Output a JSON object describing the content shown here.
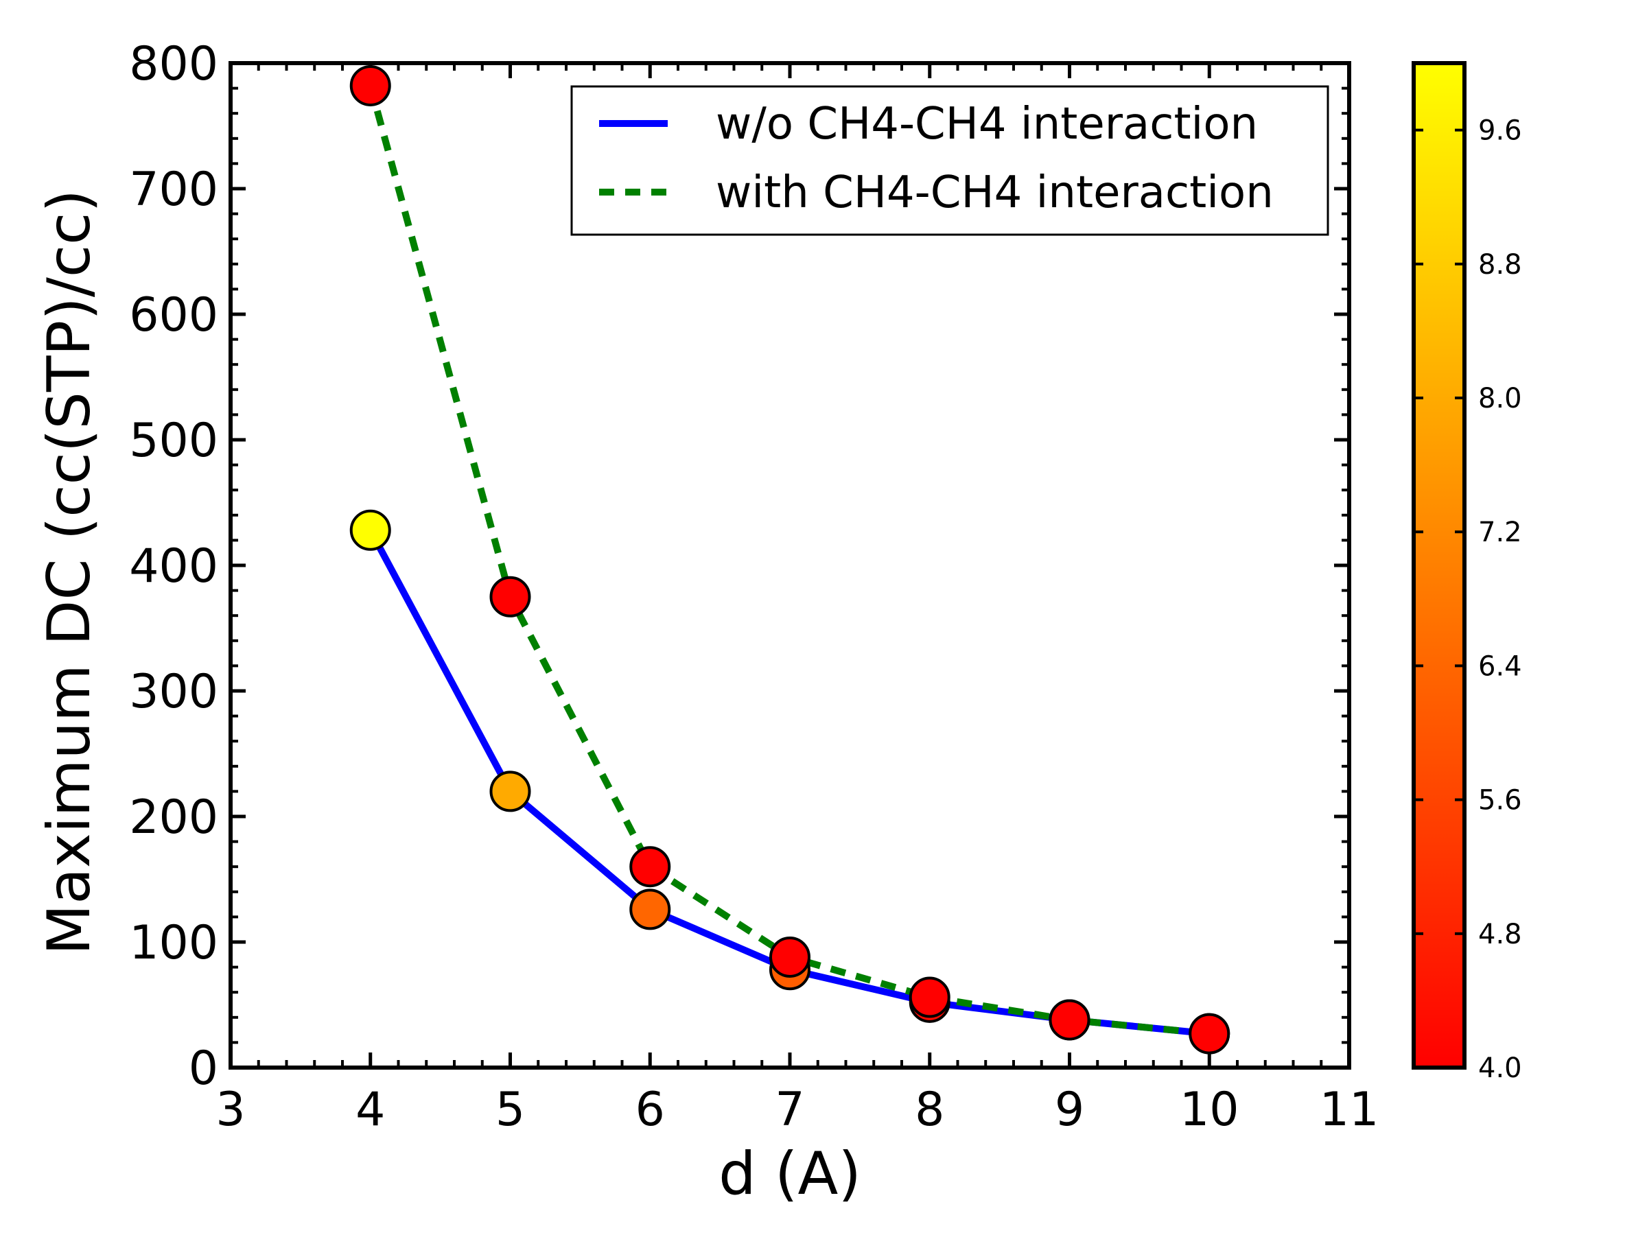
{
  "chart_data": {
    "type": "scatter",
    "xlabel": "d (A)",
    "ylabel": "Maximum DC (cc(STP)/cc)",
    "xlim": [
      3,
      11
    ],
    "ylim": [
      0,
      800
    ],
    "xticks": [
      "3",
      "4",
      "5",
      "6",
      "7",
      "8",
      "9",
      "10",
      "11"
    ],
    "yticks": [
      "0",
      "100",
      "200",
      "300",
      "400",
      "500",
      "600",
      "700",
      "800"
    ],
    "grid": false,
    "legend_position": "top-right",
    "series": [
      {
        "name": "w/o CH4-CH4 interaction",
        "style": "solid",
        "color": "#0000ff",
        "x": [
          4,
          5,
          6,
          7,
          8,
          9,
          10
        ],
        "y": [
          428,
          220,
          126,
          78,
          52,
          38,
          27
        ]
      },
      {
        "name": "with CH4-CH4 interaction",
        "style": "dashed",
        "color": "#008000",
        "x": [
          4,
          5,
          6,
          7,
          8,
          9,
          10
        ],
        "y": [
          782,
          375,
          160,
          88,
          56,
          38,
          27
        ]
      }
    ],
    "points": [
      {
        "x": 4,
        "y": 428,
        "c": 10.0
      },
      {
        "x": 5,
        "y": 220,
        "c": 8.0
      },
      {
        "x": 6,
        "y": 126,
        "c": 6.4
      },
      {
        "x": 7,
        "y": 78,
        "c": 6.2
      },
      {
        "x": 8,
        "y": 52,
        "c": 4.2
      },
      {
        "x": 9,
        "y": 38,
        "c": 4.1
      },
      {
        "x": 10,
        "y": 27,
        "c": 4.0
      },
      {
        "x": 4,
        "y": 782,
        "c": 4.0
      },
      {
        "x": 5,
        "y": 375,
        "c": 4.0
      },
      {
        "x": 6,
        "y": 160,
        "c": 4.0
      },
      {
        "x": 7,
        "y": 88,
        "c": 4.0
      },
      {
        "x": 8,
        "y": 56,
        "c": 4.0
      },
      {
        "x": 9,
        "y": 38,
        "c": 4.0
      },
      {
        "x": 10,
        "y": 27,
        "c": 4.0
      }
    ],
    "colorbar": {
      "min": 4.0,
      "max": 10.0,
      "ticks": [
        "4.0",
        "4.8",
        "5.6",
        "6.4",
        "7.2",
        "8.0",
        "8.8",
        "9.6"
      ],
      "colors": [
        "#ff0000",
        "#ff8000",
        "#ffff00"
      ]
    }
  }
}
